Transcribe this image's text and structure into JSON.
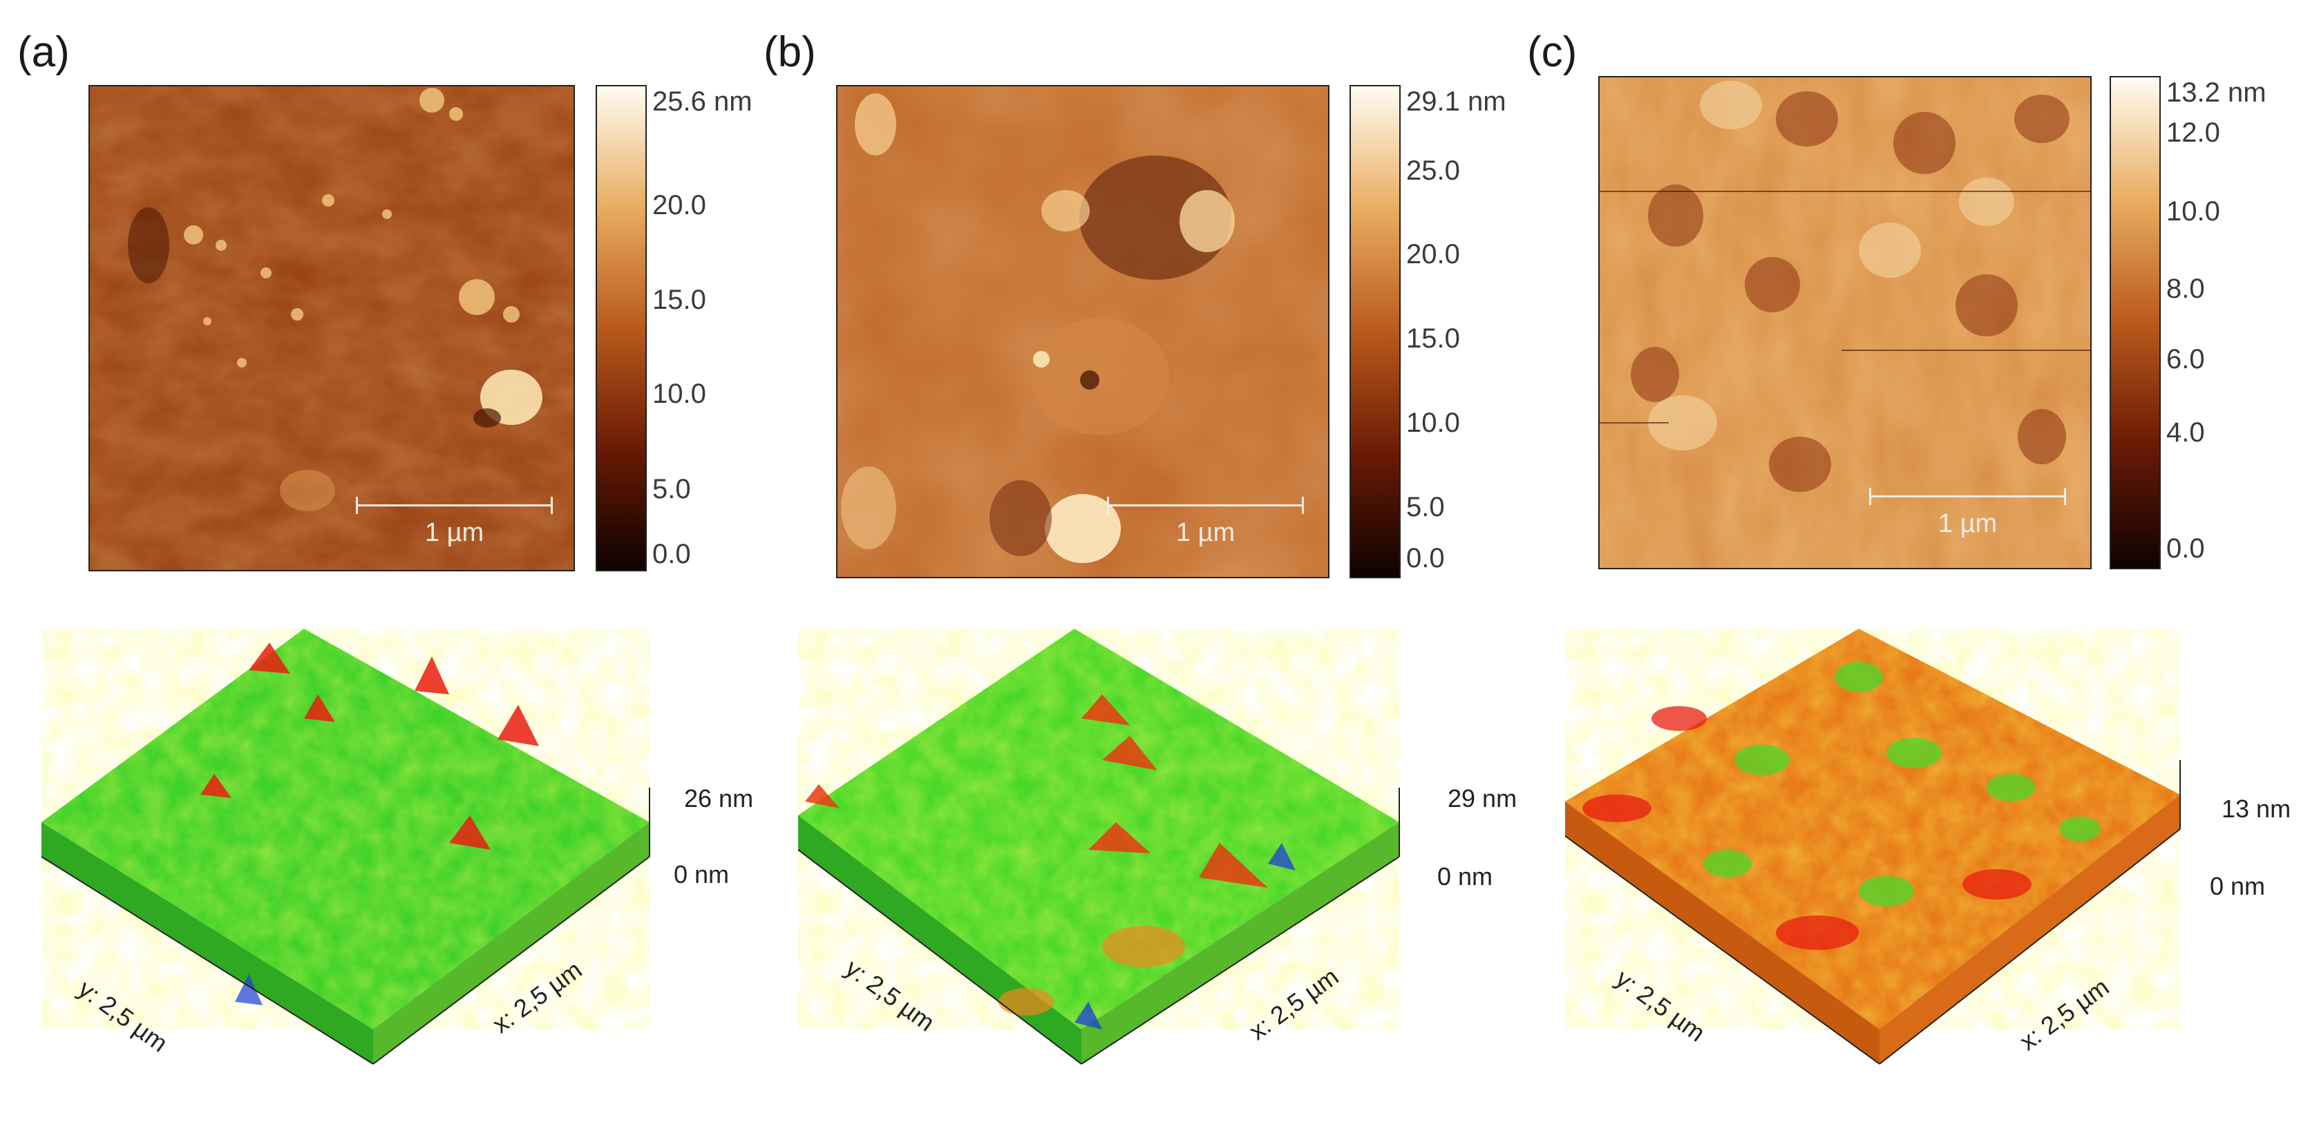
{
  "panels": [
    {
      "label": "(a)",
      "colorbar": {
        "max_label": "25.6 nm",
        "ticks": [
          "20.0",
          "15.0",
          "10.0",
          "5.0",
          "0.0"
        ]
      },
      "scale_bar": "1 µm",
      "surface3d": {
        "z_max": "26 nm",
        "z_min": "0 nm",
        "x_axis": "x: 2,5 µm",
        "y_axis": "y: 2,5 µm"
      }
    },
    {
      "label": "(b)",
      "colorbar": {
        "max_label": "29.1 nm",
        "ticks": [
          "25.0",
          "20.0",
          "15.0",
          "10.0",
          "5.0",
          "0.0"
        ]
      },
      "scale_bar": "1 µm",
      "surface3d": {
        "z_max": "29 nm",
        "z_min": "0 nm",
        "x_axis": "x: 2,5 µm",
        "y_axis": "y: 2,5 µm"
      }
    },
    {
      "label": "(c)",
      "colorbar": {
        "max_label": "13.2 nm",
        "ticks": [
          "12.0",
          "10.0",
          "8.0",
          "6.0",
          "4.0",
          "0.0"
        ]
      },
      "scale_bar": "1 µm",
      "surface3d": {
        "z_max": "13 nm",
        "z_min": "0 nm",
        "x_axis": "x: 2,5 µm",
        "y_axis": "y: 2,5 µm"
      }
    }
  ],
  "colors": {
    "afm_dark": "#1a0500",
    "afm_mid": "#b5541a",
    "afm_light": "#fff8e8",
    "surf_green": "#3fd22a",
    "surf_yellow": "#e8f020",
    "surf_red": "#e81e10",
    "surf_blue": "#1b3fd8"
  }
}
